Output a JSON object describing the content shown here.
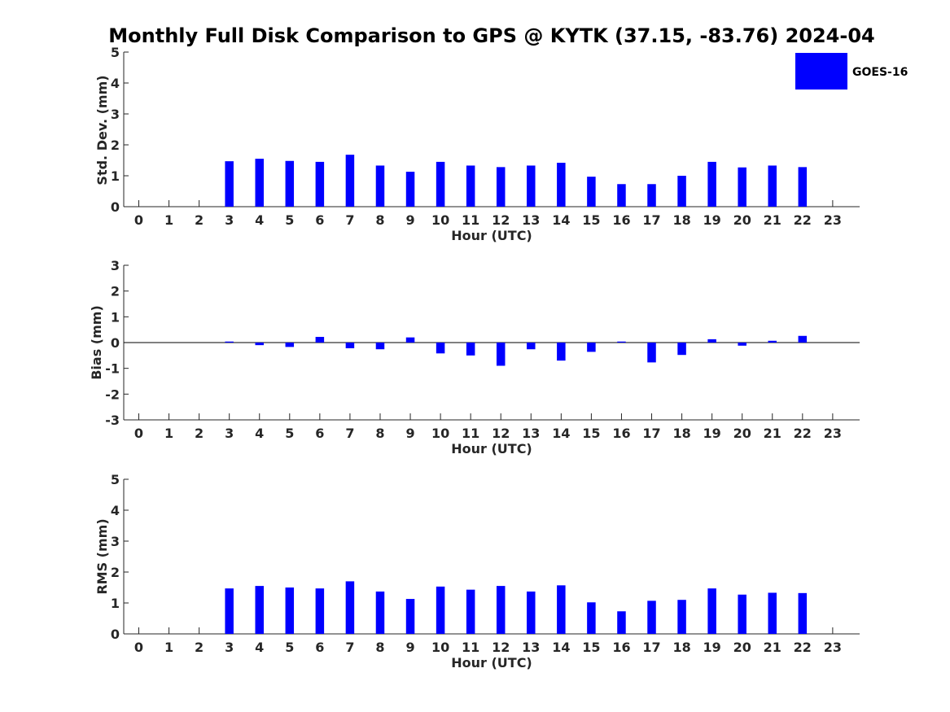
{
  "colors": {
    "bar": "#0000ff",
    "axis": "#262626",
    "background": "#ffffff"
  },
  "legend": {
    "label": "GOES-16"
  },
  "chart_data": [
    {
      "type": "bar",
      "title": "Monthly Full Disk Comparison to GPS @ KYTK (37.15, -83.76) 2024-04",
      "xlabel": "Hour (UTC)",
      "ylabel": "Std. Dev. (mm)",
      "ylim": [
        0,
        5
      ],
      "yticks": [
        0,
        1,
        2,
        3,
        4,
        5
      ],
      "categories": [
        "0",
        "1",
        "2",
        "3",
        "4",
        "5",
        "6",
        "7",
        "8",
        "9",
        "10",
        "11",
        "12",
        "13",
        "14",
        "15",
        "16",
        "17",
        "18",
        "19",
        "20",
        "21",
        "22",
        "23"
      ],
      "series": [
        {
          "name": "GOES-16",
          "values": [
            null,
            null,
            null,
            1.47,
            1.55,
            1.48,
            1.45,
            1.68,
            1.33,
            1.13,
            1.45,
            1.33,
            1.28,
            1.33,
            1.42,
            0.97,
            0.73,
            0.73,
            1.0,
            1.45,
            1.27,
            1.33,
            1.28,
            null
          ]
        }
      ]
    },
    {
      "type": "bar",
      "title": "",
      "xlabel": "Hour (UTC)",
      "ylabel": "Bias (mm)",
      "ylim": [
        -3,
        3
      ],
      "yticks": [
        -3,
        -2,
        -1,
        0,
        1,
        2,
        3
      ],
      "categories": [
        "0",
        "1",
        "2",
        "3",
        "4",
        "5",
        "6",
        "7",
        "8",
        "9",
        "10",
        "11",
        "12",
        "13",
        "14",
        "15",
        "16",
        "17",
        "18",
        "19",
        "20",
        "21",
        "22",
        "23"
      ],
      "series": [
        {
          "name": "GOES-16",
          "values": [
            null,
            null,
            null,
            0.04,
            -0.1,
            -0.17,
            0.22,
            -0.22,
            -0.26,
            0.2,
            -0.42,
            -0.5,
            -0.9,
            -0.26,
            -0.7,
            -0.36,
            0.04,
            -0.77,
            -0.48,
            0.13,
            -0.12,
            0.07,
            0.26,
            null
          ]
        }
      ]
    },
    {
      "type": "bar",
      "title": "",
      "xlabel": "Hour (UTC)",
      "ylabel": "RMS (mm)",
      "ylim": [
        0,
        5
      ],
      "yticks": [
        0,
        1,
        2,
        3,
        4,
        5
      ],
      "categories": [
        "0",
        "1",
        "2",
        "3",
        "4",
        "5",
        "6",
        "7",
        "8",
        "9",
        "10",
        "11",
        "12",
        "13",
        "14",
        "15",
        "16",
        "17",
        "18",
        "19",
        "20",
        "21",
        "22",
        "23"
      ],
      "series": [
        {
          "name": "GOES-16",
          "values": [
            null,
            null,
            null,
            1.47,
            1.55,
            1.5,
            1.47,
            1.7,
            1.37,
            1.13,
            1.53,
            1.43,
            1.55,
            1.37,
            1.57,
            1.02,
            0.73,
            1.07,
            1.1,
            1.47,
            1.27,
            1.33,
            1.32,
            null
          ]
        }
      ]
    }
  ]
}
